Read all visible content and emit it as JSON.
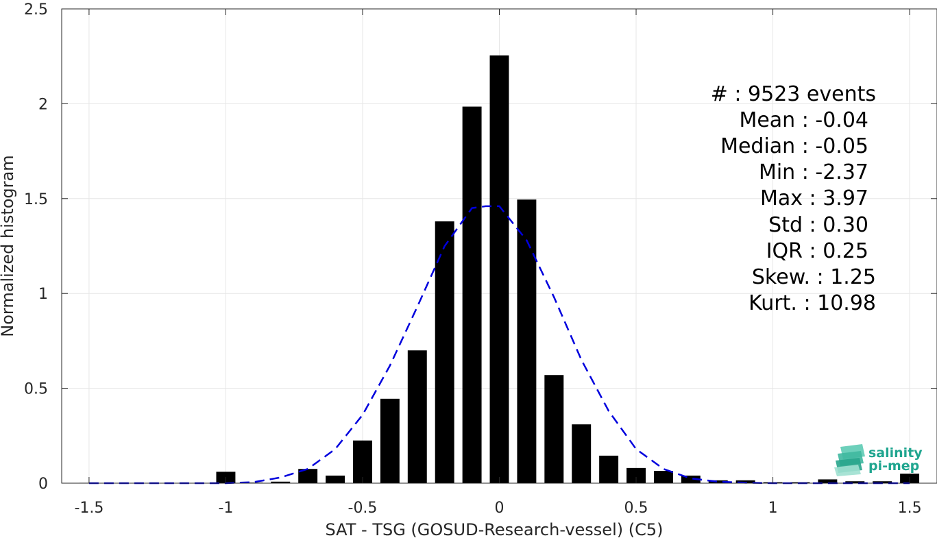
{
  "chart_data": {
    "type": "bar",
    "xlabel": "SAT - TSG (GOSUD-Research-vessel) (C5)",
    "ylabel": "Normalized histogram",
    "xlim": [
      -1.6,
      1.6
    ],
    "ylim": [
      0,
      2.5
    ],
    "grid": true,
    "xticks": [
      -1.5,
      -1,
      -0.5,
      0,
      0.5,
      1,
      1.5
    ],
    "xtick_labels": [
      "-1.5",
      "-1",
      "-0.5",
      "0",
      "0.5",
      "1",
      "1.5"
    ],
    "yticks": [
      0,
      0.5,
      1,
      1.5,
      2,
      2.5
    ],
    "ytick_labels": [
      "0",
      "0.5",
      "1",
      "1.5",
      "2",
      "2.5"
    ],
    "bar_width": 0.07,
    "bars": {
      "x": [
        -1.5,
        -1.4,
        -1.3,
        -1.2,
        -1.1,
        -1.0,
        -0.9,
        -0.8,
        -0.7,
        -0.6,
        -0.5,
        -0.4,
        -0.3,
        -0.2,
        -0.1,
        0.0,
        0.1,
        0.2,
        0.3,
        0.4,
        0.5,
        0.6,
        0.7,
        0.8,
        0.9,
        1.0,
        1.1,
        1.2,
        1.3,
        1.4,
        1.5
      ],
      "values": [
        0.002,
        0.0,
        0.0,
        0.0,
        0.0,
        0.06,
        0.003,
        0.008,
        0.075,
        0.04,
        0.225,
        0.445,
        0.7,
        1.38,
        1.985,
        2.255,
        1.495,
        0.57,
        0.31,
        0.145,
        0.08,
        0.065,
        0.04,
        0.015,
        0.015,
        0.005,
        0.005,
        0.02,
        0.01,
        0.01,
        0.05
      ]
    },
    "fit_curve": {
      "style": "dashed",
      "color": "#0000dd",
      "x": [
        -1.5,
        -1.4,
        -1.3,
        -1.2,
        -1.1,
        -1.0,
        -0.9,
        -0.8,
        -0.7,
        -0.6,
        -0.5,
        -0.4,
        -0.3,
        -0.2,
        -0.1,
        -0.05,
        0.0,
        0.1,
        0.2,
        0.3,
        0.4,
        0.5,
        0.6,
        0.7,
        0.8,
        0.9,
        1.0,
        1.1,
        1.2,
        1.3,
        1.4,
        1.5
      ],
      "y": [
        0.0,
        0.0,
        0.0,
        0.0,
        0.0,
        0.0,
        0.005,
        0.03,
        0.075,
        0.18,
        0.36,
        0.62,
        0.93,
        1.25,
        1.45,
        1.46,
        1.46,
        1.28,
        0.98,
        0.65,
        0.38,
        0.18,
        0.075,
        0.025,
        0.008,
        0.002,
        0.0,
        0.0,
        0.0,
        0.0,
        0.0,
        0.0
      ]
    },
    "bar_color": "#000000"
  },
  "stats": [
    {
      "label": "#  : 9523 events"
    },
    {
      "label": "Mean : -0.04"
    },
    {
      "label": "Median : -0.05"
    },
    {
      "label": "Min : -2.37"
    },
    {
      "label": "Max : 3.97"
    },
    {
      "label": "Std : 0.30"
    },
    {
      "label": "IQR : 0.25"
    },
    {
      "label": "Skew. : 1.25"
    },
    {
      "label": "Kurt. : 10.98"
    }
  ],
  "logo": {
    "line1": "salinity",
    "line2": "pi-mep",
    "color": "#1fa58f"
  }
}
